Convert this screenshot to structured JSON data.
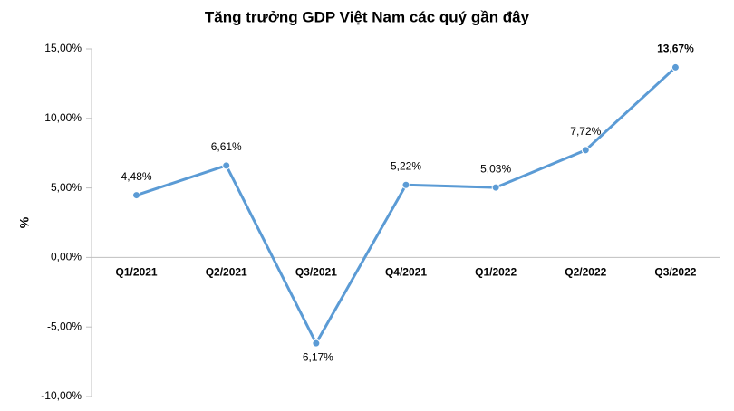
{
  "chart_data": {
    "type": "line",
    "title": "Tăng trưởng GDP Việt Nam các quý gần đây",
    "y_label": "%",
    "categories": [
      "Q1/2021",
      "Q2/2021",
      "Q3/2021",
      "Q4/2021",
      "Q1/2022",
      "Q2/2022",
      "Q3/2022"
    ],
    "series": [
      {
        "name": "GDP",
        "color": "#5b9bd5",
        "values": [
          4.48,
          6.61,
          -6.17,
          5.22,
          5.03,
          7.72,
          13.67
        ],
        "value_labels": [
          "4,48%",
          "6,61%",
          "-6,17%",
          "5,22%",
          "5,03%",
          "7,72%",
          "13,67%"
        ]
      }
    ],
    "ylim": [
      -10,
      15
    ],
    "yticks": [
      {
        "value": -10,
        "label": "-10,00%"
      },
      {
        "value": -5,
        "label": "-5,00%"
      },
      {
        "value": 0,
        "label": "0,00%"
      },
      {
        "value": 5,
        "label": "5,00%"
      },
      {
        "value": 10,
        "label": "10,00%"
      },
      {
        "value": 15,
        "label": "15,00%"
      }
    ]
  }
}
